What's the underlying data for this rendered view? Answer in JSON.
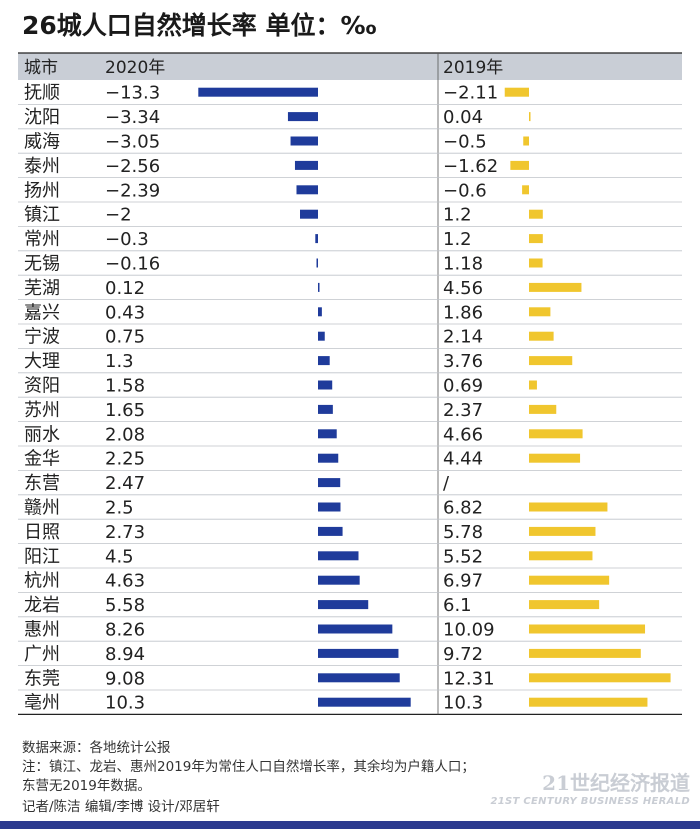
{
  "page": {
    "title": "26城人口自然增长率 单位：‰"
  },
  "chart_data": {
    "type": "bar",
    "title": "26城人口自然增长率 单位：‰",
    "columns": {
      "city": "城市",
      "y2020": "2020年",
      "y2019": "2019年"
    },
    "categories": [
      "抚顺",
      "沈阳",
      "威海",
      "泰州",
      "扬州",
      "镇江",
      "常州",
      "无锡",
      "芜湖",
      "嘉兴",
      "宁波",
      "大理",
      "资阳",
      "苏州",
      "丽水",
      "金华",
      "东营",
      "赣州",
      "日照",
      "阳江",
      "杭州",
      "龙岩",
      "惠州",
      "广州",
      "东莞",
      "亳州"
    ],
    "series": [
      {
        "name": "2020年",
        "color": "#1f3b9b",
        "values": [
          -13.3,
          -3.34,
          -3.05,
          -2.56,
          -2.39,
          -2,
          -0.3,
          -0.16,
          0.12,
          0.43,
          0.75,
          1.3,
          1.58,
          1.65,
          2.08,
          2.25,
          2.47,
          2.5,
          2.73,
          4.5,
          4.63,
          5.58,
          8.26,
          8.94,
          9.08,
          10.3
        ],
        "labels": [
          "−13.3",
          "−3.34",
          "−3.05",
          "−2.56",
          "−2.39",
          "−2",
          "−0.3",
          "−0.16",
          "0.12",
          "0.43",
          "0.75",
          "1.3",
          "1.58",
          "1.65",
          "2.08",
          "2.25",
          "2.47",
          "2.5",
          "2.73",
          "4.5",
          "4.63",
          "5.58",
          "8.26",
          "8.94",
          "9.08",
          "10.3"
        ]
      },
      {
        "name": "2019年",
        "color": "#f0c62e",
        "values": [
          -2.11,
          0.04,
          -0.5,
          -1.62,
          -0.6,
          1.2,
          1.2,
          1.18,
          4.56,
          1.86,
          2.14,
          3.76,
          0.69,
          2.37,
          4.66,
          4.44,
          null,
          6.82,
          5.78,
          5.52,
          6.97,
          6.1,
          10.09,
          9.72,
          12.31,
          10.3
        ],
        "labels": [
          "−2.11",
          "0.04",
          "−0.5",
          "−1.62",
          "−0.6",
          "1.2",
          "1.2",
          "1.18",
          "4.56",
          "1.86",
          "2.14",
          "3.76",
          "0.69",
          "2.37",
          "4.66",
          "4.44",
          "/",
          "6.82",
          "5.78",
          "5.52",
          "6.97",
          "6.1",
          "10.09",
          "9.72",
          "12.31",
          "10.3"
        ]
      }
    ]
  },
  "notes": {
    "source": "数据来源：各地统计公报",
    "note_line1": "注：镇江、龙岩、惠州2019年为常住人口自然增长率，其余均为户籍人口；",
    "note_line2": "东营无2019年数据。",
    "credits": "记者/陈洁   编辑/李博   设计/邓居轩"
  },
  "watermark": {
    "cn": "21世纪经济报道",
    "en": "21ST CENTURY BUSINESS HERALD"
  }
}
